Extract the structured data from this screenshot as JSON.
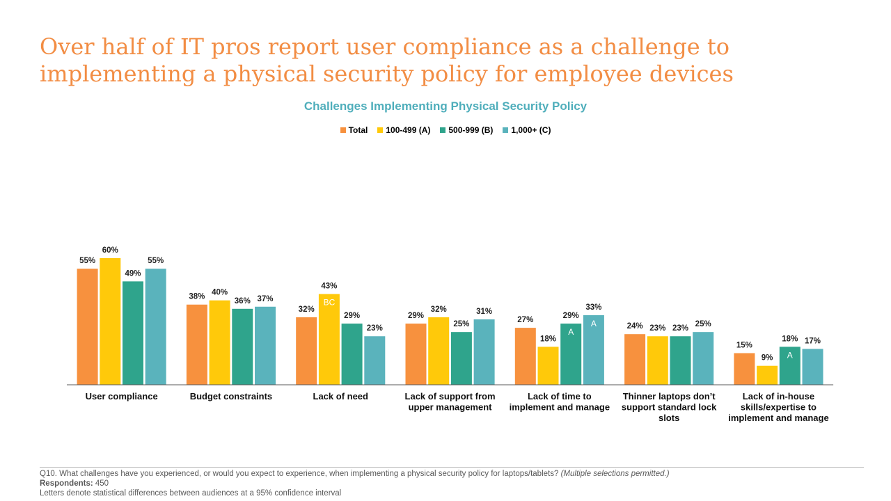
{
  "page": {
    "title": "Over half of IT pros report user compliance as a challenge to implementing a physical security policy for employee devices"
  },
  "colors": {
    "title": "#F28D44",
    "chart_title": "#4FAEBB",
    "total": "#F7913E",
    "seg_a": "#FFC90A",
    "seg_b": "#2FA48C",
    "seg_c": "#5AB3BC"
  },
  "chart_data": {
    "type": "bar",
    "title": "Challenges Implementing Physical Security Policy",
    "legend_position": "top",
    "grid": false,
    "ylim": [
      0,
      70
    ],
    "categories": [
      [
        "User compliance"
      ],
      [
        "Budget constraints"
      ],
      [
        "Lack of need"
      ],
      [
        "Lack of support from",
        "upper management"
      ],
      [
        "Lack of time to",
        "implement and manage"
      ],
      [
        "Thinner laptops don’t",
        "support standard lock",
        "slots"
      ],
      [
        "Lack of in-house",
        "skills/expertise to",
        "implement and manage"
      ]
    ],
    "series": [
      {
        "name": "Total",
        "color": "#F7913E",
        "values": [
          55,
          38,
          32,
          29,
          27,
          24,
          15
        ],
        "sig": [
          "",
          "",
          "",
          "",
          "",
          "",
          ""
        ]
      },
      {
        "name": "100-499 (A)",
        "color": "#FFC90A",
        "values": [
          60,
          40,
          43,
          32,
          18,
          23,
          9
        ],
        "sig": [
          "",
          "",
          "BC",
          "",
          "",
          "",
          ""
        ]
      },
      {
        "name": "500-999 (B)",
        "color": "#2FA48C",
        "values": [
          49,
          36,
          29,
          25,
          29,
          23,
          18
        ],
        "sig": [
          "",
          "",
          "",
          "",
          "A",
          "",
          "A"
        ]
      },
      {
        "name": "1,000+ (C)",
        "color": "#5AB3BC",
        "values": [
          55,
          37,
          23,
          31,
          33,
          25,
          17
        ],
        "sig": [
          "",
          "",
          "",
          "",
          "A",
          "",
          ""
        ]
      }
    ],
    "value_suffix": "%"
  },
  "footer": {
    "question": "Q10. What challenges have you experienced, or would you expect to experience, when implementing a physical security policy for laptops/tablets?",
    "question_note": "(Multiple selections permitted.)",
    "respondents_label": "Respondents:",
    "respondents_value": "450",
    "note": "Letters denote statistical differences between audiences at a 95% confidence interval"
  }
}
